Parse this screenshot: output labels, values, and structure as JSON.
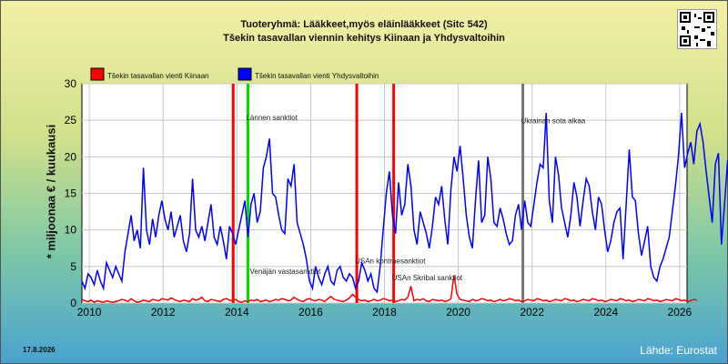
{
  "header": {
    "title_line1": "Tuoteryhmä: Lääkkeet,myös eläinlääkkeet (Sitc 542)",
    "title_line2": "Tšekin tasavallan viennin kehitys  Kiinaan ja Yhdysvaltoihin"
  },
  "footer": {
    "date": "17.8.2026",
    "source": "Lähde: Eurostat"
  },
  "chart_data": {
    "type": "line",
    "ylabel": "* miljoonaa € / kuukausi",
    "ylim": [
      0,
      30
    ],
    "yticks": [
      0,
      5,
      10,
      15,
      20,
      25,
      30
    ],
    "xlim": [
      2009.8,
      2026.2
    ],
    "xticks": [
      2010,
      2012,
      2014,
      2016,
      2018,
      2020,
      2022,
      2024,
      2026
    ],
    "grid": true,
    "legend_position": "top-left",
    "series": [
      {
        "name": "Tšekin tasavallan vienti Kiinaan",
        "color": "#ff0000",
        "values": [
          0.5,
          0.3,
          0.2,
          0.4,
          0.1,
          0.3,
          0.2,
          0.1,
          0.3,
          0.2,
          0.1,
          0.2,
          0.3,
          0.5,
          0.4,
          0.2,
          0.6,
          0.3,
          0.1,
          0.2,
          0.4,
          0.3,
          0.2,
          0.5,
          0.4,
          0.3,
          0.6,
          0.5,
          0.4,
          0.7,
          0.5,
          0.3,
          0.2,
          0.4,
          0.3,
          0.2,
          0.6,
          0.4,
          0.5,
          0.8,
          0.3,
          0.2,
          0.5,
          0.4,
          0.3,
          0.2,
          0.5,
          0.6,
          0.4,
          0.3,
          0.5,
          0.2,
          0.1,
          0.3,
          0.2,
          0.4,
          0.3,
          0.5,
          0.2,
          0.3,
          0.4,
          0.2,
          0.3,
          0.5,
          0.4,
          0.6,
          0.5,
          0.3,
          0.4,
          0.8,
          0.5,
          0.3,
          0.2,
          0.5,
          0.6,
          0.4,
          0.3,
          0.5,
          0.4,
          0.2,
          0.6,
          0.9,
          0.5,
          0.4,
          0.3,
          0.2,
          0.4,
          0.7,
          1.2,
          0.8,
          0.5,
          0.3,
          0.4,
          0.2,
          0.3,
          0.5,
          0.3,
          0.4,
          0.6,
          0.5,
          0.3,
          0.4,
          0.2,
          0.3,
          0.5,
          0.4,
          0.8,
          2.3,
          0.3,
          0.5,
          0.4,
          0.6,
          0.3,
          0.2,
          0.5,
          0.4,
          0.3,
          0.4,
          0.2,
          0.3,
          0.6,
          3.8,
          1.2,
          0.5,
          0.4,
          0.3,
          0.2,
          0.5,
          0.3,
          0.4,
          0.6,
          0.5,
          0.3,
          0.4,
          0.2,
          0.3,
          0.5,
          0.3,
          0.4,
          0.6,
          0.5,
          0.3,
          0.4,
          0.2,
          0.3,
          0.5,
          0.4,
          0.3,
          0.6,
          0.5,
          0.3,
          0.4,
          0.2,
          0.3,
          0.5,
          0.4,
          0.3,
          0.6,
          0.5,
          0.3,
          0.4,
          0.2,
          0.3,
          0.5,
          0.4,
          0.3,
          0.6,
          0.5,
          0.3,
          0.4,
          0.2,
          0.3,
          0.5,
          0.4,
          0.3,
          0.6,
          0.5,
          0.3,
          0.4,
          0.2,
          0.3,
          0.5,
          0.4,
          0.3,
          0.6,
          0.5,
          0.3,
          0.4,
          0.2,
          0.3,
          0.5,
          0.4,
          0.3,
          0.6,
          0.5,
          0.3,
          0.4,
          0.2,
          0.3,
          0.5,
          0.4
        ],
        "x_start": 2009.8
      },
      {
        "name": "Tšekin tasavallan vienti Yhdysvaltoihin",
        "color": "#0000ff",
        "values": [
          3.0,
          2.0,
          4.0,
          3.5,
          2.5,
          4.5,
          3.0,
          2.0,
          5.5,
          4.5,
          3.5,
          5.0,
          4.0,
          3.0,
          7.0,
          9.5,
          12.0,
          8.5,
          10.0,
          7.5,
          18.5,
          10.0,
          8.0,
          11.5,
          9.0,
          12.0,
          14.0,
          11.5,
          10.0,
          12.5,
          9.0,
          10.5,
          12.0,
          8.5,
          7.0,
          9.5,
          17.0,
          10.0,
          9.0,
          10.5,
          8.5,
          11.0,
          13.5,
          9.0,
          8.0,
          10.5,
          8.5,
          6.0,
          10.5,
          9.5,
          8.0,
          10.0,
          12.0,
          14.0,
          9.0,
          13.5,
          15.0,
          11.0,
          12.5,
          18.5,
          20.0,
          22.5,
          15.0,
          14.5,
          12.0,
          10.0,
          9.5,
          17.0,
          16.0,
          19.0,
          11.0,
          9.5,
          8.0,
          6.0,
          3.0,
          2.0,
          5.0,
          3.5,
          2.5,
          4.0,
          5.0,
          3.0,
          2.5,
          4.5,
          5.0,
          3.5,
          3.0,
          4.0,
          3.5,
          2.0,
          3.0,
          5.5,
          4.5,
          3.0,
          4.0,
          2.0,
          1.5,
          5.0,
          10.0,
          15.0,
          18.0,
          12.0,
          9.5,
          16.5,
          12.0,
          13.5,
          19.0,
          16.0,
          10.0,
          8.0,
          12.5,
          11.0,
          9.5,
          7.5,
          10.5,
          14.5,
          13.5,
          16.0,
          11.5,
          8.0,
          15.5,
          20.0,
          18.0,
          21.5,
          17.0,
          12.0,
          9.0,
          7.5,
          14.0,
          19.5,
          11.0,
          12.0,
          20.0,
          17.0,
          11.0,
          10.5,
          13.0,
          11.5,
          9.5,
          8.0,
          8.5,
          12.0,
          13.5,
          10.0,
          14.0,
          11.0,
          10.5,
          13.5,
          16.5,
          19.0,
          18.5,
          26.0,
          14.0,
          11.0,
          20.0,
          17.5,
          13.0,
          11.0,
          9.0,
          12.0,
          16.5,
          14.5,
          10.5,
          14.0,
          17.0,
          16.0,
          12.5,
          10.0,
          14.5,
          13.5,
          10.0,
          7.0,
          8.5,
          11.0,
          12.5,
          13.0,
          6.0,
          13.5,
          21.0,
          14.5,
          14.0,
          9.5,
          6.5,
          8.5,
          10.5,
          5.0,
          3.5,
          3.0,
          5.0,
          6.0,
          7.5,
          9.0,
          12.5,
          16.0,
          20.0,
          26.0,
          18.5,
          20.5,
          22.0,
          19.0,
          23.5,
          24.5,
          22.0,
          18.0,
          14.5,
          11.0,
          19.0,
          20.5,
          8.0,
          13.5,
          19.5,
          11.0,
          14.0,
          23.5
        ],
        "x_start": 2009.8
      }
    ],
    "event_lines": [
      {
        "x": 2013.9,
        "color": "#ff0000",
        "label": ""
      },
      {
        "x": 2014.3,
        "color": "#00dd00",
        "label": "Lännen sanktiot"
      },
      {
        "x": 2017.25,
        "color": "#ff0000",
        "label": "USAn kontraesanktiot"
      },
      {
        "x": 2018.25,
        "color": "#ff0000",
        "label": "USAn Skribal sanktiot"
      },
      {
        "x": 2021.75,
        "color": "#777777",
        "label": "Ukrainan sota alkaa"
      }
    ],
    "annotations": [
      {
        "text": "Venäjän vastasanktiot",
        "x": 2014.35,
        "y": 4.0
      }
    ]
  }
}
